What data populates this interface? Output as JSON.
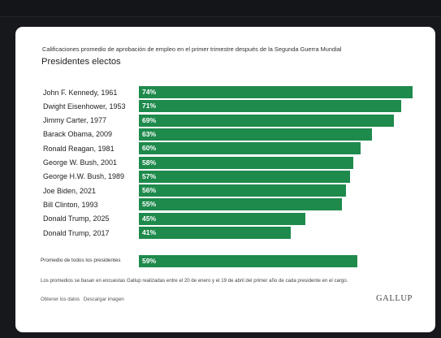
{
  "chart_data": {
    "type": "bar",
    "orientation": "horizontal",
    "caption": "Calificaciones promedio de aprobación de empleo en el primer trimestre después de la Segunda Guerra Mundial",
    "subtitle": "Presidentes electos",
    "categories": [
      "John F. Kennedy, 1961",
      "Dwight Eisenhower, 1953",
      "Jimmy Carter, 1977",
      "Barack Obama, 2009",
      "Ronald Reagan, 1981",
      "George W. Bush, 2001",
      "George H.W. Bush, 1989",
      "Joe Biden, 2021",
      "Bill Clinton, 1993",
      "Donald Trump, 2025",
      "Donald Trump, 2017"
    ],
    "values": [
      74,
      71,
      69,
      63,
      60,
      58,
      57,
      56,
      55,
      45,
      41
    ],
    "value_labels": [
      "74%",
      "71%",
      "69%",
      "63%",
      "60%",
      "58%",
      "57%",
      "56%",
      "55%",
      "45%",
      "41%"
    ],
    "average": {
      "label": "Promedio de todos los presidentes",
      "value": 59,
      "value_label": "59%"
    },
    "bar_color": "#1e8a4c",
    "xlim": [
      0,
      74
    ],
    "grid": false,
    "legend": "none"
  },
  "note": "Los promedios se basan en encuestas Gallup realizadas entre el 20 de enero y el 19 de abril del primer año de cada presidente en el cargo.",
  "links": {
    "data": "Obtener los datos",
    "image": "Descargar imagen"
  },
  "logo": "GALLUP"
}
